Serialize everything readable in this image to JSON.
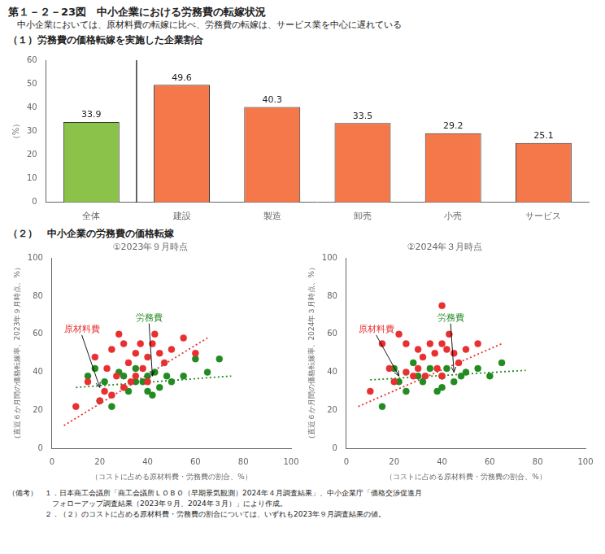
{
  "title": "第１－２－23図　中小企業における労務費の転嫁状況",
  "subtitle": "　中小企業においては、原材料費の転嫁に比べ、労務費の転嫁は、サービス業を中心に遅れている",
  "notes": [
    "（備考）　１．日本商工会議所「商工会議所ＬＯＢＯ（早期景気観測）2024年４月調査結果」、中小企業庁「価格交渉促進月",
    "　　　　　　フォローアップ調査結果（2023年９月、2024年３月）」により作成。",
    "　　　　　２．（２）のコストに占める原材料費・労務費の割合については、いずれも2023年９月調査結果の値。"
  ],
  "chart_data": [
    {
      "type": "bar",
      "title": "（１）労務費の価格転嫁を実施した企業割合",
      "categories": [
        "全体",
        "建設",
        "製造",
        "卸売",
        "小売",
        "サービス"
      ],
      "values": [
        33.9,
        49.6,
        40.3,
        33.5,
        29.2,
        25.1
      ],
      "colors": [
        "#8bc34a",
        "#f4784a",
        "#f4784a",
        "#f4784a",
        "#f4784a",
        "#f4784a"
      ],
      "ylabel": "（%）",
      "ylim": [
        0,
        60
      ],
      "yticks": [
        0,
        10,
        20,
        30,
        40,
        50,
        60
      ],
      "data_labels": true,
      "grid": false,
      "legend": false
    },
    {
      "type": "scatter",
      "section_title": "（２）　中小企業の労務費の価格転嫁",
      "title": "①2023年９月時点",
      "xlabel": "（コストに占める原材料費・労務費の割合、%）",
      "ylabel": "（直近６か月間の価格転嫁率、2023年９月時点、%）",
      "xlim": [
        0,
        100
      ],
      "ylim": [
        0,
        100
      ],
      "xticks": [
        0,
        20,
        40,
        60,
        80,
        100
      ],
      "yticks": [
        0,
        20,
        40,
        60,
        80,
        100
      ],
      "grid": false,
      "legend": false,
      "series": [
        {
          "color": "#e83030",
          "marker": "circle",
          "x": [
            10,
            15,
            18,
            20,
            22,
            23,
            25,
            25,
            27,
            28,
            30,
            30,
            32,
            33,
            35,
            35,
            37,
            38,
            40,
            40,
            42,
            43,
            45,
            47,
            50,
            55,
            60
          ],
          "values": [
            22,
            35,
            48,
            25,
            30,
            42,
            28,
            52,
            38,
            60,
            32,
            55,
            45,
            35,
            50,
            38,
            55,
            42,
            48,
            35,
            55,
            60,
            50,
            45,
            52,
            58,
            50
          ]
        },
        {
          "color": "#228b22",
          "marker": "circle",
          "x": [
            15,
            18,
            20,
            22,
            25,
            28,
            30,
            32,
            35,
            35,
            38,
            40,
            40,
            42,
            43,
            45,
            48,
            50,
            55,
            60,
            65,
            70
          ],
          "values": [
            38,
            42,
            25,
            35,
            22,
            40,
            38,
            30,
            35,
            42,
            35,
            38,
            30,
            28,
            40,
            32,
            38,
            35,
            38,
            47,
            40,
            47
          ]
        },
        {
          "type": "line",
          "line_style": "dotted",
          "marker": "none",
          "color": "#e83030",
          "x": [
            5,
            65
          ],
          "values": [
            12,
            58
          ]
        },
        {
          "type": "line",
          "line_style": "dotted",
          "marker": "none",
          "color": "#228b22",
          "x": [
            10,
            75
          ],
          "values": [
            32,
            38
          ]
        }
      ],
      "annotations": [
        {
          "text": "原材料費",
          "color": "#e83030",
          "xy": [
            20,
            32
          ],
          "xytext": [
            5,
            60
          ]
        },
        {
          "text": "労務費",
          "color": "#228b22",
          "xy": [
            42,
            38
          ],
          "xytext": [
            35,
            66
          ]
        }
      ]
    },
    {
      "type": "scatter",
      "title": "②2024年３月時点",
      "xlabel": "（コストに占める原材料費・労務費の割合、%）",
      "ylabel": "（直近６か月間の価格転嫁率、2024年３月時点、%）",
      "xlim": [
        0,
        100
      ],
      "ylim": [
        0,
        100
      ],
      "xticks": [
        0,
        20,
        40,
        60,
        80,
        100
      ],
      "yticks": [
        0,
        20,
        40,
        60,
        80,
        100
      ],
      "grid": false,
      "legend": false,
      "series": [
        {
          "color": "#e83030",
          "marker": "circle",
          "x": [
            10,
            15,
            18,
            20,
            22,
            25,
            25,
            28,
            30,
            30,
            32,
            33,
            35,
            37,
            38,
            40,
            40,
            40,
            42,
            43,
            45,
            47,
            50,
            55
          ],
          "values": [
            30,
            55,
            42,
            35,
            60,
            40,
            55,
            38,
            52,
            42,
            48,
            38,
            55,
            50,
            42,
            55,
            38,
            75,
            52,
            60,
            50,
            45,
            52,
            55
          ]
        },
        {
          "color": "#228b22",
          "marker": "circle",
          "x": [
            15,
            20,
            22,
            25,
            28,
            30,
            32,
            35,
            38,
            40,
            40,
            42,
            45,
            48,
            50,
            55,
            60,
            65
          ],
          "values": [
            22,
            42,
            35,
            30,
            45,
            38,
            35,
            42,
            30,
            38,
            32,
            42,
            35,
            38,
            40,
            42,
            38,
            45
          ]
        },
        {
          "type": "line",
          "line_style": "dotted",
          "marker": "none",
          "color": "#e83030",
          "x": [
            5,
            65
          ],
          "values": [
            22,
            55
          ]
        },
        {
          "type": "line",
          "line_style": "dotted",
          "marker": "none",
          "color": "#228b22",
          "x": [
            10,
            75
          ],
          "values": [
            36,
            41
          ]
        }
      ],
      "annotations": [
        {
          "text": "原材料費",
          "color": "#e83030",
          "xy": [
            22,
            38
          ],
          "xytext": [
            5,
            60
          ]
        },
        {
          "text": "労務費",
          "color": "#228b22",
          "xy": [
            45,
            40
          ],
          "xytext": [
            38,
            66
          ]
        }
      ]
    }
  ]
}
